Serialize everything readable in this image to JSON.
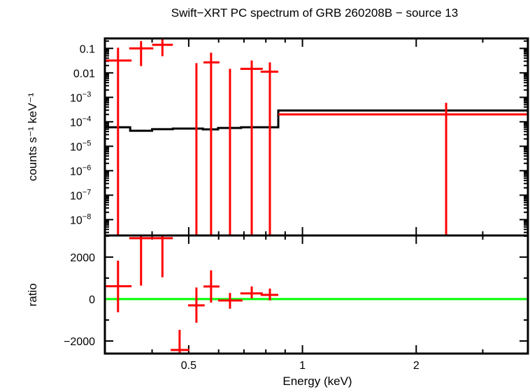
{
  "chart_data": [
    {
      "type": "scatter",
      "panel": "spectrum",
      "title": "Swift−XRT PC spectrum of GRB 260208B − source 13",
      "ylabel": "counts s⁻¹ keV⁻¹",
      "xlabel": "",
      "xscale": "log",
      "yscale": "log",
      "xlim": [
        0.3,
        3.95
      ],
      "ylim": [
        2.25e-09,
        0.256
      ],
      "ytick_labels": [
        {
          "value": 0.1,
          "label": "0.1",
          "exp": ""
        },
        {
          "value": 0.01,
          "label": "0.01",
          "exp": ""
        },
        {
          "value": 0.001,
          "label": "10",
          "exp": "−3"
        },
        {
          "value": 0.0001,
          "label": "10",
          "exp": "−4"
        },
        {
          "value": 1e-05,
          "label": "10",
          "exp": "−5"
        },
        {
          "value": 1e-06,
          "label": "10",
          "exp": "−6"
        },
        {
          "value": 1e-07,
          "label": "10",
          "exp": "−7"
        },
        {
          "value": 1e-08,
          "label": "10",
          "exp": "−8"
        }
      ],
      "data_color": "#ff0000",
      "model_color": "#000000",
      "data": [
        {
          "x": 0.325,
          "xlo": 0.3,
          "xhi": 0.353,
          "y": 0.032,
          "ylo": null,
          "yhi": 0.107
        },
        {
          "x": 0.374,
          "xlo": 0.348,
          "xhi": 0.403,
          "y": 0.1,
          "ylo": 0.019,
          "yhi": 0.2
        },
        {
          "x": 0.426,
          "xlo": 0.4,
          "xhi": 0.454,
          "y": 0.14,
          "ylo": 0.048,
          "yhi": null
        },
        {
          "x": 0.524,
          "xlo": 0.498,
          "xhi": 0.551,
          "y": null,
          "ylo": null,
          "yhi": 0.025
        },
        {
          "x": 0.573,
          "xlo": 0.547,
          "xhi": 0.603,
          "y": 0.027,
          "ylo": null,
          "yhi": 0.067
        },
        {
          "x": 0.643,
          "xlo": 0.598,
          "xhi": 0.694,
          "y": null,
          "ylo": null,
          "yhi": 0.0146
        },
        {
          "x": 0.734,
          "xlo": 0.685,
          "xhi": 0.785,
          "y": 0.0146,
          "ylo": null,
          "yhi": 0.032
        },
        {
          "x": 0.82,
          "xlo": 0.775,
          "xhi": 0.863,
          "y": 0.0112,
          "ylo": null,
          "yhi": 0.027
        },
        {
          "x": 2.4,
          "xlo": null,
          "xhi": null,
          "y": null,
          "ylo": null,
          "yhi": 0.0006
        }
      ],
      "model": {
        "edges": [
          0.3,
          0.35,
          0.4,
          0.454,
          0.545,
          0.598,
          0.688,
          0.863,
          3.95
        ],
        "values": [
          6e-05,
          4.3e-05,
          5e-05,
          5.3e-05,
          4.9e-05,
          5.6e-05,
          6e-05,
          0.00029
        ]
      },
      "red_model": {
        "x_from": 0.863,
        "x_to": 3.95,
        "value": 0.0002
      }
    },
    {
      "type": "scatter",
      "panel": "ratio",
      "ylabel": "ratio",
      "xlabel": "Energy (keV)",
      "xscale": "log",
      "yscale": "linear",
      "xlim": [
        0.3,
        3.95
      ],
      "ylim": [
        -2600,
        3030
      ],
      "xtick_labels": [
        {
          "value": 0.5,
          "label": "0.5"
        },
        {
          "value": 1,
          "label": "1"
        },
        {
          "value": 2,
          "label": "2"
        }
      ],
      "ytick_labels": [
        {
          "value": 2000,
          "label": "2000"
        },
        {
          "value": 0,
          "label": "0"
        },
        {
          "value": -2000,
          "label": "−2000"
        }
      ],
      "reference_line": {
        "value": 0,
        "color": "#00ff00"
      },
      "data_color": "#ff0000",
      "data": [
        {
          "x": 0.325,
          "xlo": 0.3,
          "xhi": 0.353,
          "y": 610,
          "ylo": -630,
          "yhi": 1830
        },
        {
          "x": 0.374,
          "xlo": 0.348,
          "xhi": 0.403,
          "y": 2900,
          "ylo": 640,
          "yhi": null
        },
        {
          "x": 0.426,
          "xlo": 0.4,
          "xhi": 0.454,
          "y": 2900,
          "ylo": 1040,
          "yhi": null
        },
        {
          "x": 0.473,
          "xlo": 0.448,
          "xhi": 0.502,
          "y": -2430,
          "ylo": null,
          "yhi": -1470
        },
        {
          "x": 0.524,
          "xlo": 0.498,
          "xhi": 0.551,
          "y": -300,
          "ylo": -1130,
          "yhi": 550
        },
        {
          "x": 0.573,
          "xlo": 0.547,
          "xhi": 0.603,
          "y": 600,
          "ylo": -170,
          "yhi": 1370
        },
        {
          "x": 0.643,
          "xlo": 0.598,
          "xhi": 0.694,
          "y": -70,
          "ylo": -460,
          "yhi": 290
        },
        {
          "x": 0.734,
          "xlo": 0.685,
          "xhi": 0.785,
          "y": 270,
          "ylo": 30,
          "yhi": 600
        },
        {
          "x": 0.82,
          "xlo": 0.775,
          "xhi": 0.863,
          "y": 200,
          "ylo": -70,
          "yhi": 500
        }
      ]
    }
  ]
}
